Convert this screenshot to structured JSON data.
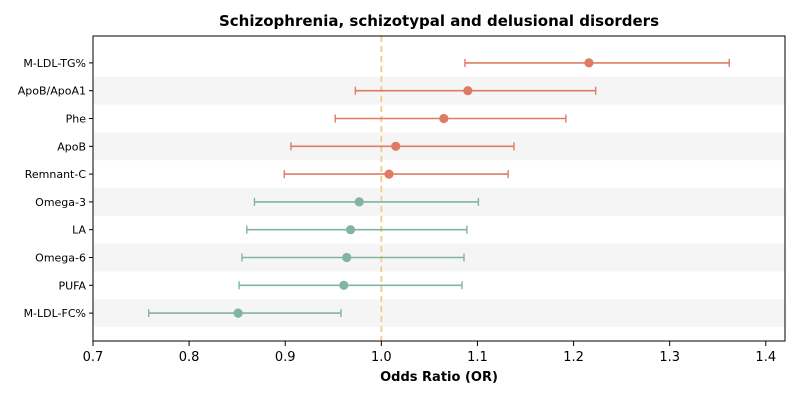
{
  "chart_data": {
    "type": "forest",
    "title": "Schizophrenia, schizotypal and delusional disorders",
    "xlabel": "Odds Ratio (OR)",
    "ylabel": "",
    "xlim": [
      0.7,
      1.42
    ],
    "x_ticks": [
      0.7,
      0.8,
      0.9,
      1.0,
      1.1,
      1.2,
      1.3,
      1.4
    ],
    "x_tick_labels": [
      "0.7",
      "0.8",
      "0.9",
      "1.0",
      "1.1",
      "1.2",
      "1.3",
      "1.4"
    ],
    "reference_line": 1.0,
    "grid": false,
    "alternating_row_shading": true,
    "colors": {
      "risk": "#e07b63",
      "protective": "#82b59f",
      "reference_line": "#f5c987",
      "row_shade": "#f5f5f5"
    },
    "rows": [
      {
        "label": "M-LDL-TG%",
        "or": 1.216,
        "lower": 1.087,
        "upper": 1.362,
        "group": "risk"
      },
      {
        "label": "ApoB/ApoA1",
        "or": 1.09,
        "lower": 0.973,
        "upper": 1.223,
        "group": "risk"
      },
      {
        "label": "Phe",
        "or": 1.065,
        "lower": 0.952,
        "upper": 1.192,
        "group": "risk"
      },
      {
        "label": "ApoB",
        "or": 1.015,
        "lower": 0.906,
        "upper": 1.138,
        "group": "risk"
      },
      {
        "label": "Remnant-C",
        "or": 1.008,
        "lower": 0.899,
        "upper": 1.132,
        "group": "risk"
      },
      {
        "label": "Omega-3",
        "or": 0.977,
        "lower": 0.868,
        "upper": 1.101,
        "group": "protective"
      },
      {
        "label": "LA",
        "or": 0.968,
        "lower": 0.86,
        "upper": 1.089,
        "group": "protective"
      },
      {
        "label": "Omega-6",
        "or": 0.964,
        "lower": 0.855,
        "upper": 1.086,
        "group": "protective"
      },
      {
        "label": "PUFA",
        "or": 0.961,
        "lower": 0.852,
        "upper": 1.084,
        "group": "protective"
      },
      {
        "label": "M-LDL-FC%",
        "or": 0.851,
        "lower": 0.758,
        "upper": 0.958,
        "group": "protective"
      }
    ]
  }
}
